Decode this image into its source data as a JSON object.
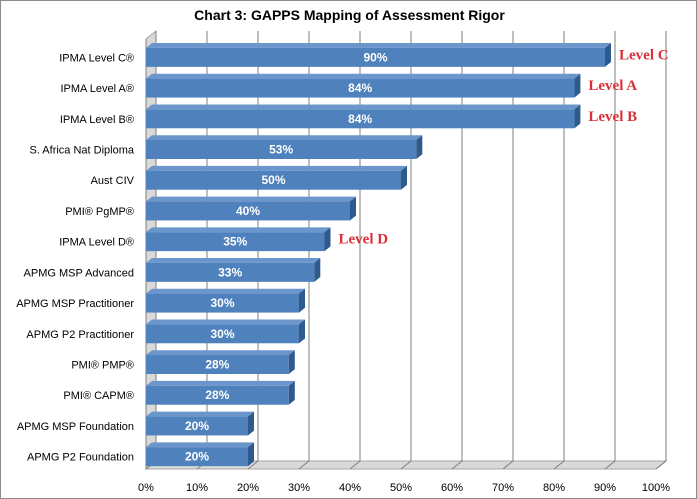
{
  "chart_data": {
    "type": "bar",
    "orientation": "horizontal",
    "title": "Chart 3: GAPPS Mapping of Assessment Rigor",
    "xlabel": "",
    "ylabel": "",
    "categories": [
      "IPMA Level C®",
      "IPMA Level A®",
      "IPMA Level B®",
      "S. Africa Nat Diploma",
      "Aust CIV",
      "PMI® PgMP®",
      "IPMA Level D®",
      "APMG MSP Advanced",
      "APMG MSP Practitioner",
      "APMG P2 Practitioner",
      "PMI® PMP®",
      "PMI® CAPM®",
      "APMG MSP Foundation",
      "APMG P2 Foundation"
    ],
    "values": [
      90,
      84,
      84,
      53,
      50,
      40,
      35,
      33,
      30,
      30,
      28,
      28,
      20,
      20
    ],
    "value_labels": [
      "90%",
      "84%",
      "84%",
      "53%",
      "50%",
      "40%",
      "35%",
      "33%",
      "30%",
      "30%",
      "28%",
      "28%",
      "20%",
      "20%"
    ],
    "xlim": [
      0,
      100
    ],
    "x_ticks": [
      "0%",
      "10%",
      "20%",
      "30%",
      "40%",
      "50%",
      "60%",
      "70%",
      "80%",
      "90%",
      "100%"
    ],
    "grid": true,
    "legend": "none",
    "annotations": [
      {
        "text": "Level C",
        "category_index": 0
      },
      {
        "text": "Level A",
        "category_index": 1
      },
      {
        "text": "Level B",
        "category_index": 2
      },
      {
        "text": "Level D",
        "category_index": 6
      }
    ],
    "colors": {
      "bar_front": "#4f81bd",
      "bar_side": "#2f5a8c",
      "bar_top": "#6b96cc",
      "annotation": "#d9303a",
      "grid": "#7f7f7f",
      "wall": "#d9d9d9"
    }
  }
}
